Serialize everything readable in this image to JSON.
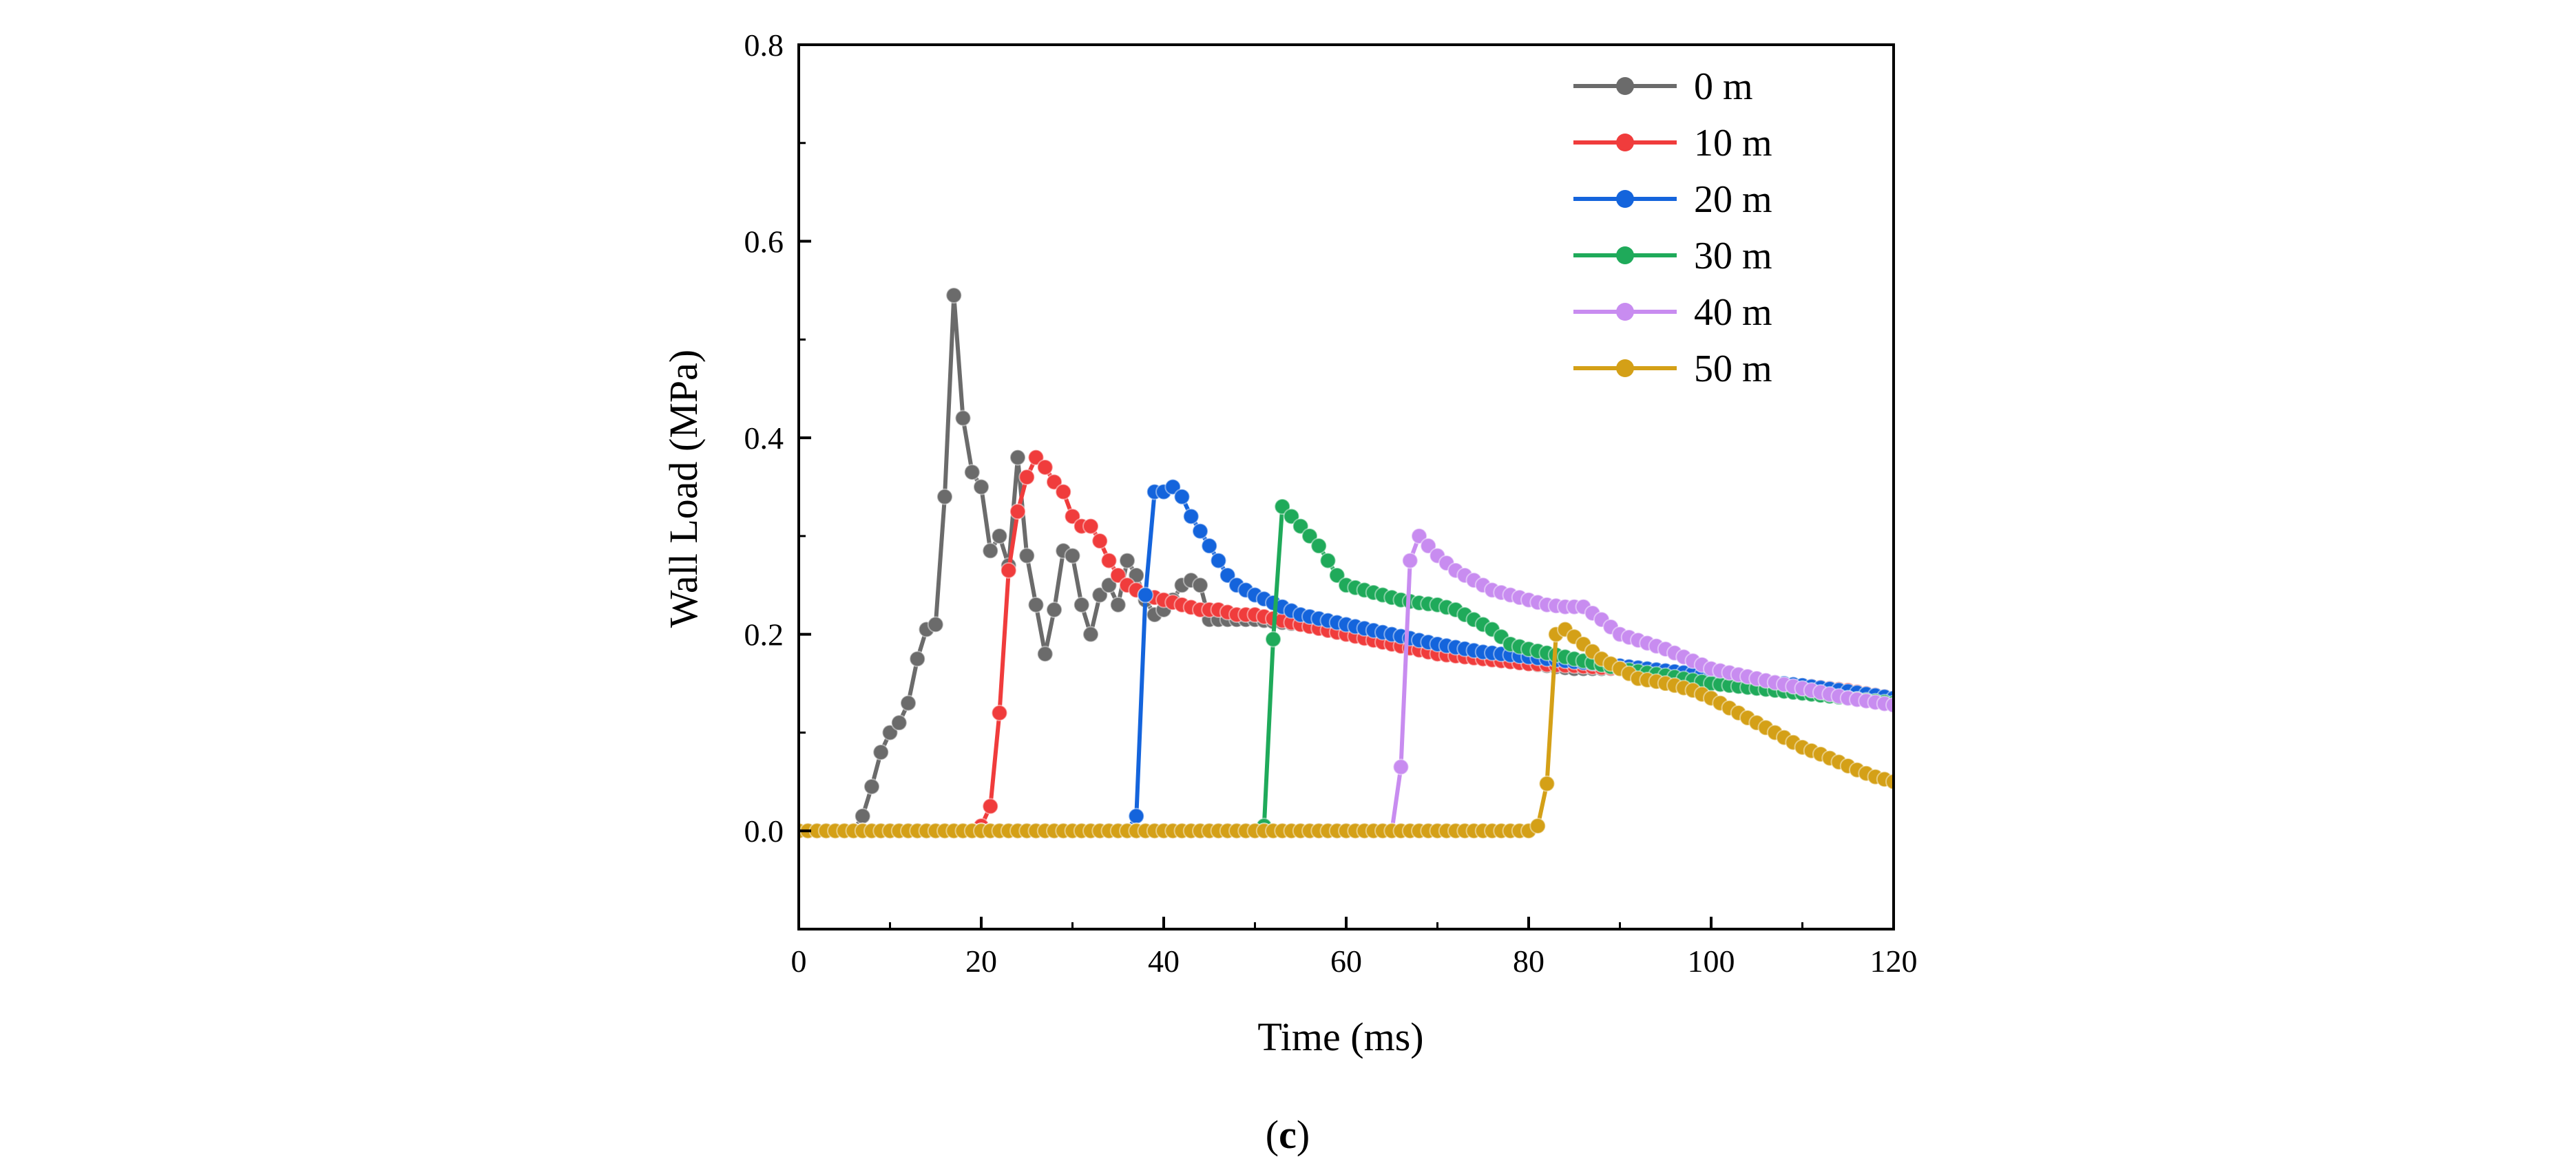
{
  "chart_data": {
    "type": "line",
    "title": "",
    "xlabel": "Time (ms)",
    "ylabel": "Wall Load (MPa)",
    "xlim": [
      0,
      120
    ],
    "ylim": [
      -0.1,
      0.8
    ],
    "xticks": [
      0,
      20,
      40,
      60,
      80,
      100,
      120
    ],
    "xtick_labels": [
      "0",
      "20",
      "40",
      "60",
      "80",
      "100",
      "120"
    ],
    "yticks": [
      0.0,
      0.2,
      0.4,
      0.6,
      0.8
    ],
    "ytick_labels": [
      "0.0",
      "0.2",
      "0.4",
      "0.6",
      "0.8"
    ],
    "grid": false,
    "legend_position": "top-right",
    "caption": {
      "open": "(",
      "letter": "c",
      "close": ")"
    },
    "series": [
      {
        "name": "0 m",
        "color": "#6b6b6b",
        "x": [
          0,
          1,
          2,
          3,
          4,
          5,
          6,
          7,
          8,
          9,
          10,
          11,
          12,
          13,
          14,
          15,
          16,
          17,
          18,
          19,
          20,
          21,
          22,
          23,
          24,
          25,
          26,
          27,
          28,
          29,
          30,
          31,
          32,
          33,
          34,
          35,
          36,
          37,
          38,
          39,
          40,
          41,
          42,
          43,
          44,
          45,
          50,
          55,
          60,
          65,
          70,
          75,
          80,
          85,
          90,
          95,
          100,
          105,
          110,
          115,
          120
        ],
        "y": [
          0,
          0,
          0,
          0,
          0,
          0,
          0,
          0.015,
          0.045,
          0.08,
          0.1,
          0.11,
          0.13,
          0.175,
          0.205,
          0.21,
          0.34,
          0.545,
          0.42,
          0.365,
          0.35,
          0.285,
          0.3,
          0.27,
          0.38,
          0.28,
          0.23,
          0.18,
          0.225,
          0.285,
          0.28,
          0.23,
          0.2,
          0.24,
          0.25,
          0.23,
          0.275,
          0.26,
          0.235,
          0.22,
          0.225,
          0.235,
          0.25,
          0.255,
          0.25,
          0.215,
          0.215,
          0.21,
          0.2,
          0.19,
          0.18,
          0.175,
          0.17,
          0.165,
          0.165,
          0.16,
          0.155,
          0.15,
          0.145,
          0.14,
          0.135
        ]
      },
      {
        "name": "10 m",
        "color": "#f03c3c",
        "x": [
          0,
          2,
          4,
          6,
          8,
          10,
          12,
          14,
          16,
          18,
          19,
          20,
          21,
          22,
          23,
          24,
          25,
          26,
          27,
          28,
          29,
          30,
          31,
          32,
          33,
          34,
          35,
          36,
          37,
          38,
          40,
          42,
          44,
          46,
          48,
          50,
          55,
          60,
          65,
          70,
          75,
          80,
          85,
          90,
          95,
          100,
          105,
          110,
          115,
          120
        ],
        "y": [
          0,
          0,
          0,
          0,
          0,
          0,
          0,
          0,
          0,
          0,
          0,
          0.005,
          0.025,
          0.12,
          0.265,
          0.325,
          0.36,
          0.38,
          0.37,
          0.355,
          0.345,
          0.32,
          0.31,
          0.31,
          0.295,
          0.275,
          0.26,
          0.25,
          0.245,
          0.24,
          0.235,
          0.23,
          0.225,
          0.225,
          0.22,
          0.22,
          0.21,
          0.2,
          0.19,
          0.18,
          0.175,
          0.17,
          0.168,
          0.165,
          0.16,
          0.155,
          0.152,
          0.148,
          0.143,
          0.135
        ]
      },
      {
        "name": "20 m",
        "color": "#1464dc",
        "x": [
          0,
          5,
          10,
          15,
          20,
          25,
          30,
          35,
          36,
          37,
          38,
          39,
          40,
          41,
          42,
          43,
          44,
          45,
          46,
          47,
          48,
          50,
          55,
          60,
          65,
          70,
          75,
          80,
          85,
          90,
          95,
          100,
          105,
          110,
          115,
          120
        ],
        "y": [
          0,
          0,
          0,
          0,
          0,
          0,
          0,
          0,
          0,
          0.015,
          0.24,
          0.345,
          0.345,
          0.35,
          0.34,
          0.32,
          0.305,
          0.29,
          0.275,
          0.26,
          0.25,
          0.24,
          0.22,
          0.21,
          0.2,
          0.19,
          0.182,
          0.177,
          0.172,
          0.168,
          0.163,
          0.158,
          0.153,
          0.148,
          0.142,
          0.135
        ]
      },
      {
        "name": "30 m",
        "color": "#1faa5a",
        "x": [
          0,
          5,
          10,
          15,
          20,
          25,
          30,
          35,
          40,
          45,
          50,
          51,
          52,
          53,
          54,
          55,
          56,
          57,
          58,
          59,
          60,
          62,
          64,
          66,
          68,
          70,
          72,
          74,
          76,
          78,
          80,
          85,
          90,
          95,
          100,
          105,
          110,
          115,
          120
        ],
        "y": [
          0,
          0,
          0,
          0,
          0,
          0,
          0,
          0,
          0,
          0,
          0,
          0.005,
          0.195,
          0.33,
          0.32,
          0.31,
          0.3,
          0.29,
          0.275,
          0.26,
          0.25,
          0.245,
          0.24,
          0.235,
          0.232,
          0.23,
          0.225,
          0.215,
          0.205,
          0.19,
          0.185,
          0.175,
          0.165,
          0.158,
          0.15,
          0.145,
          0.14,
          0.135,
          0.13
        ]
      },
      {
        "name": "40 m",
        "color": "#c88cf0",
        "x": [
          0,
          5,
          10,
          15,
          20,
          25,
          30,
          35,
          40,
          45,
          50,
          55,
          60,
          65,
          66,
          67,
          68,
          69,
          70,
          72,
          74,
          76,
          78,
          80,
          82,
          84,
          86,
          88,
          90,
          95,
          100,
          105,
          110,
          115,
          120
        ],
        "y": [
          0,
          0,
          0,
          0,
          0,
          0,
          0,
          0,
          0,
          0,
          0,
          0,
          0,
          0,
          0.065,
          0.275,
          0.3,
          0.29,
          0.28,
          0.265,
          0.255,
          0.245,
          0.24,
          0.235,
          0.23,
          0.228,
          0.228,
          0.215,
          0.2,
          0.185,
          0.165,
          0.155,
          0.145,
          0.135,
          0.128
        ]
      },
      {
        "name": "50 m",
        "color": "#d4a017",
        "x": [
          0,
          5,
          10,
          15,
          20,
          25,
          30,
          35,
          40,
          45,
          50,
          55,
          60,
          65,
          70,
          75,
          80,
          81,
          82,
          83,
          84,
          86,
          88,
          90,
          92,
          94,
          96,
          98,
          100,
          102,
          104,
          106,
          108,
          110,
          112,
          114,
          116,
          118,
          120
        ],
        "y": [
          0,
          0,
          0,
          0,
          0,
          0,
          0,
          0,
          0,
          0,
          0,
          0,
          0,
          0,
          0,
          0,
          0,
          0.005,
          0.048,
          0.2,
          0.205,
          0.19,
          0.175,
          0.165,
          0.155,
          0.152,
          0.148,
          0.143,
          0.135,
          0.125,
          0.115,
          0.105,
          0.095,
          0.085,
          0.078,
          0.07,
          0.062,
          0.055,
          0.05
        ]
      }
    ]
  }
}
